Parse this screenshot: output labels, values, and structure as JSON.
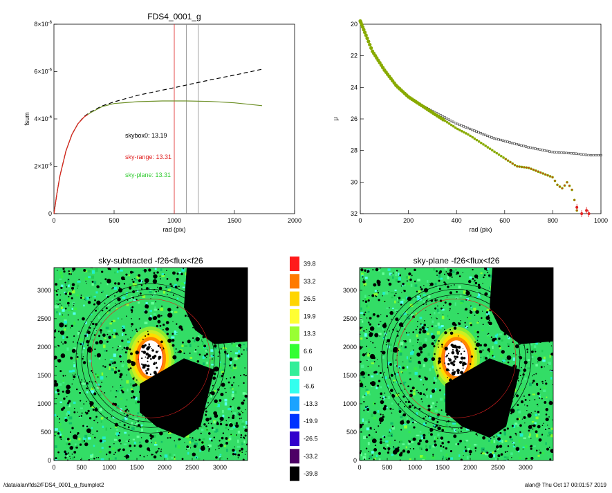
{
  "footer": {
    "path": "/data/alan/fds2/FDS4_0001_g_fsumplot2",
    "stamp": "alan@  Thu Oct 17 00:01:57 2019"
  },
  "chart_data": [
    {
      "type": "line",
      "title": "FDS4_0001_g",
      "xlabel": "rad (pix)",
      "ylabel": "fsum",
      "xlim": [
        0,
        2000
      ],
      "ylim": [
        0,
        8e-06
      ],
      "xticks": [
        0,
        500,
        1000,
        1500,
        2000
      ],
      "yticks": [
        {
          "v": 0,
          "base": "0",
          "exp": ""
        },
        {
          "v": 2e-06,
          "base": "2×10",
          "exp": "-6"
        },
        {
          "v": 4e-06,
          "base": "4×10",
          "exp": "-6"
        },
        {
          "v": 6e-06,
          "base": "6×10",
          "exp": "-6"
        },
        {
          "v": 8e-06,
          "base": "8×10",
          "exp": "-6"
        }
      ],
      "vlines": [
        {
          "x": 1000,
          "color": "#e02020"
        },
        {
          "x": 1100,
          "color": "#888888"
        },
        {
          "x": 1200,
          "color": "#888888"
        }
      ],
      "annotations": [
        {
          "text": "skybox0: 13.19",
          "color": "#000000"
        },
        {
          "text": "sky-range: 13.31",
          "color": "#e02020"
        },
        {
          "text": "sky-plane: 13.31",
          "color": "#33cc33"
        }
      ],
      "series": [
        {
          "style": "dashed",
          "color": "#000000",
          "x": [
            0,
            25,
            50,
            100,
            150,
            200,
            250,
            300,
            400,
            500,
            700,
            1000,
            1300,
            1500,
            1730
          ],
          "y": [
            0,
            8.5e-07,
            1.6e-06,
            2.65e-06,
            3.35e-06,
            3.8e-06,
            4.1e-06,
            4.28e-06,
            4.55e-06,
            4.72e-06,
            5e-06,
            5.32e-06,
            5.65e-06,
            5.85e-06,
            6.1e-06
          ]
        },
        {
          "style": "solid",
          "color": "#6b8e23",
          "x": [
            0,
            25,
            50,
            100,
            150,
            200,
            250,
            300,
            400,
            500,
            700,
            900,
            1100,
            1300,
            1500,
            1730
          ],
          "y": [
            0,
            8.5e-07,
            1.6e-06,
            2.65e-06,
            3.35e-06,
            3.8e-06,
            4.08e-06,
            4.25e-06,
            4.52e-06,
            4.65e-06,
            4.73e-06,
            4.76e-06,
            4.76e-06,
            4.74e-06,
            4.68e-06,
            4.56e-06
          ]
        },
        {
          "style": "solid",
          "color": "#e02020",
          "x": [
            0,
            25,
            50,
            100,
            150,
            200,
            250,
            280
          ],
          "y": [
            0,
            8.5e-07,
            1.6e-06,
            2.65e-06,
            3.35e-06,
            3.8e-06,
            4.08e-06,
            4.18e-06
          ]
        }
      ]
    },
    {
      "type": "scatter",
      "title": "",
      "xlabel": "rad (pix)",
      "ylabel": "μ",
      "xlim": [
        0,
        1000
      ],
      "ylim": [
        20,
        32
      ],
      "y_inverted": true,
      "xticks": [
        0,
        200,
        400,
        600,
        800,
        1000
      ],
      "yticks": [
        20,
        22,
        24,
        26,
        28,
        30,
        32
      ],
      "series": [
        {
          "marker": "square-open",
          "color": "#333333",
          "x": [
            0,
            50,
            100,
            150,
            200,
            250,
            300,
            350,
            400,
            450,
            500,
            550,
            600,
            650,
            700,
            750,
            800,
            850,
            900,
            950,
            1000
          ],
          "y": [
            19.8,
            21.7,
            22.9,
            23.9,
            24.6,
            25.1,
            25.5,
            25.9,
            26.3,
            26.6,
            26.9,
            27.2,
            27.4,
            27.6,
            27.8,
            27.95,
            28.1,
            28.15,
            28.2,
            28.3,
            28.3
          ]
        },
        {
          "marker": "circle-filled",
          "color": "#88aa00",
          "x": [
            0,
            50,
            100,
            150,
            200,
            250,
            300,
            350,
            400,
            450,
            500,
            550,
            600,
            650,
            700,
            750,
            800,
            820,
            840,
            860,
            880,
            900
          ],
          "y": [
            19.8,
            21.7,
            22.9,
            23.9,
            24.6,
            25.1,
            25.6,
            26.1,
            26.6,
            27.0,
            27.5,
            28.0,
            28.5,
            29.0,
            29.1,
            29.4,
            29.7,
            30.2,
            30.4,
            30.0,
            30.5,
            31.8
          ]
        },
        {
          "marker": "circle-filled",
          "color": "#e02020",
          "x": [
            900,
            920,
            940,
            950
          ],
          "y": [
            31.6,
            32.0,
            31.8,
            32.0
          ]
        }
      ]
    },
    {
      "type": "heatmap",
      "title": "sky-subtracted -f26<flux<f26",
      "xlim": [
        0,
        3500
      ],
      "ylim": [
        0,
        3400
      ],
      "xticks": [
        0,
        500,
        1000,
        1500,
        2000,
        2500,
        3000
      ],
      "yticks": [
        0,
        500,
        1000,
        1500,
        2000,
        2500,
        3000
      ]
    },
    {
      "type": "heatmap",
      "title": "sky-plane -f26<flux<f26",
      "xlim": [
        0,
        3500
      ],
      "ylim": [
        0,
        3400
      ],
      "xticks": [
        0,
        500,
        1000,
        1500,
        2000,
        2500,
        3000
      ],
      "yticks": [
        0,
        500,
        1000,
        1500,
        2000,
        2500,
        3000
      ]
    }
  ],
  "colorbar": {
    "levels": [
      {
        "label": "39.8",
        "color": "#ff1a1a"
      },
      {
        "label": "33.2",
        "color": "#ff7a00"
      },
      {
        "label": "26.5",
        "color": "#ffd500"
      },
      {
        "label": "19.9",
        "color": "#ffff33"
      },
      {
        "label": "13.3",
        "color": "#99ff33"
      },
      {
        "label": "6.6",
        "color": "#33ff33"
      },
      {
        "label": "0.0",
        "color": "#33ee99"
      },
      {
        "label": "-6.6",
        "color": "#33ffee"
      },
      {
        "label": "-13.3",
        "color": "#1aa3ff"
      },
      {
        "label": "-19.9",
        "color": "#0033ff"
      },
      {
        "label": "-26.5",
        "color": "#3300cc"
      },
      {
        "label": "-33.2",
        "color": "#4d0066"
      },
      {
        "label": "-39.8",
        "color": "#000000"
      }
    ]
  }
}
